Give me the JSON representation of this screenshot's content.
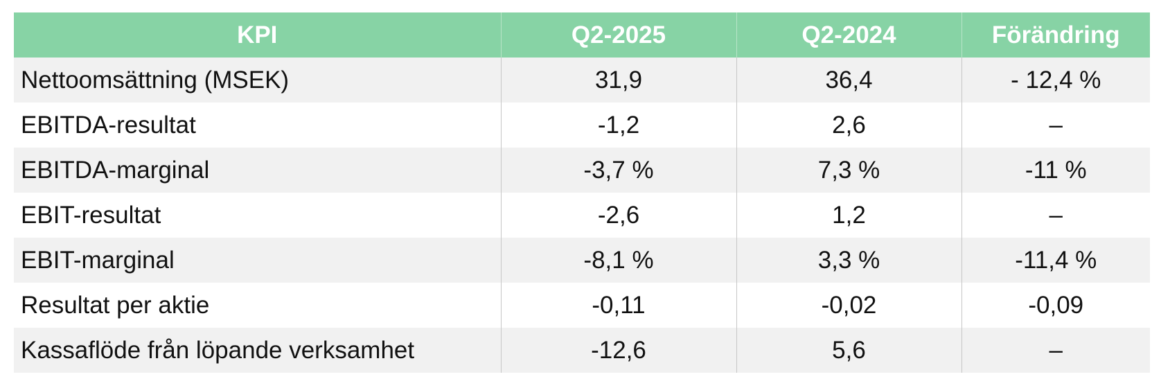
{
  "table": {
    "headers": [
      "KPI",
      "Q2-2025",
      "Q2-2024",
      "Förändring"
    ],
    "rows": [
      [
        "Nettoomsättning (MSEK)",
        "31,9",
        "36,4",
        "- 12,4 %"
      ],
      [
        "EBITDA-resultat",
        "-1,2",
        "2,6",
        "–"
      ],
      [
        "EBITDA-marginal",
        "-3,7 %",
        "7,3 %",
        "-11 %"
      ],
      [
        "EBIT-resultat",
        "-2,6",
        "1,2",
        "–"
      ],
      [
        "EBIT-marginal",
        "-8,1 %",
        "3,3 %",
        "-11,4 %"
      ],
      [
        "Resultat per aktie",
        "-0,11",
        "-0,02",
        "-0,09"
      ],
      [
        "Kassaflöde från löpande verksamhet",
        "-12,6",
        "5,6",
        "–"
      ]
    ]
  },
  "colors": {
    "header_background": "#87d3a5",
    "header_text": "#ffffff",
    "row_shaded": "#f1f1f1",
    "row_plain": "#ffffff"
  }
}
